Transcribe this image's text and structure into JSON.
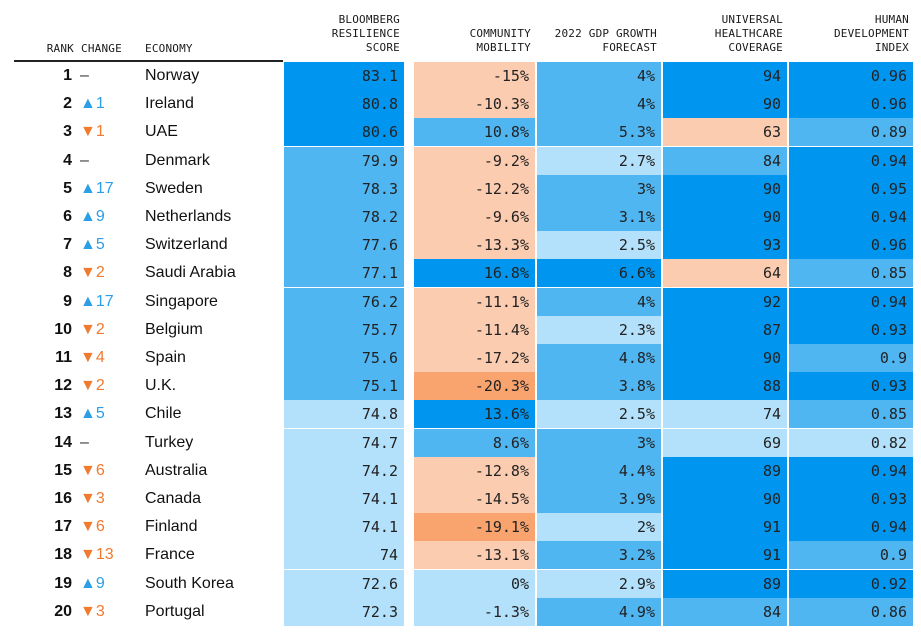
{
  "chart_data": {
    "type": "table",
    "headers": {
      "rank": "RANK",
      "change": "CHANGE",
      "economy": "ECONOMY",
      "score": "BLOOMBERG\nRESILIENCE\nSCORE",
      "mobility": "COMMUNITY\nMOBILITY",
      "gdp": "2022 GDP GROWTH\nFORECAST",
      "uhc": "UNIVERSAL\nHEALTHCARE\nCOVERAGE",
      "hdi": "HUMAN\nDEVELOPMENT\nINDEX"
    },
    "rows": [
      {
        "rank": "1",
        "change": "–",
        "dir": "flat",
        "economy": "Norway",
        "score": "83.1",
        "mobility": "-15%",
        "gdp": "4%",
        "uhc": "94",
        "hdi": "0.96"
      },
      {
        "rank": "2",
        "change": "▲1",
        "dir": "up",
        "economy": "Ireland",
        "score": "80.8",
        "mobility": "-10.3%",
        "gdp": "4%",
        "uhc": "90",
        "hdi": "0.96"
      },
      {
        "rank": "3",
        "change": "▼1",
        "dir": "down",
        "economy": "UAE",
        "score": "80.6",
        "mobility": "10.8%",
        "gdp": "5.3%",
        "uhc": "63",
        "hdi": "0.89"
      },
      {
        "rank": "4",
        "change": "–",
        "dir": "flat",
        "economy": "Denmark",
        "score": "79.9",
        "mobility": "-9.2%",
        "gdp": "2.7%",
        "uhc": "84",
        "hdi": "0.94"
      },
      {
        "rank": "5",
        "change": "▲17",
        "dir": "up",
        "economy": "Sweden",
        "score": "78.3",
        "mobility": "-12.2%",
        "gdp": "3%",
        "uhc": "90",
        "hdi": "0.95"
      },
      {
        "rank": "6",
        "change": "▲9",
        "dir": "up",
        "economy": "Netherlands",
        "score": "78.2",
        "mobility": "-9.6%",
        "gdp": "3.1%",
        "uhc": "90",
        "hdi": "0.94"
      },
      {
        "rank": "7",
        "change": "▲5",
        "dir": "up",
        "economy": "Switzerland",
        "score": "77.6",
        "mobility": "-13.3%",
        "gdp": "2.5%",
        "uhc": "93",
        "hdi": "0.96"
      },
      {
        "rank": "8",
        "change": "▼2",
        "dir": "down",
        "economy": "Saudi Arabia",
        "score": "77.1",
        "mobility": "16.8%",
        "gdp": "6.6%",
        "uhc": "64",
        "hdi": "0.85"
      },
      {
        "rank": "9",
        "change": "▲17",
        "dir": "up",
        "economy": "Singapore",
        "score": "76.2",
        "mobility": "-11.1%",
        "gdp": "4%",
        "uhc": "92",
        "hdi": "0.94"
      },
      {
        "rank": "10",
        "change": "▼2",
        "dir": "down",
        "economy": "Belgium",
        "score": "75.7",
        "mobility": "-11.4%",
        "gdp": "2.3%",
        "uhc": "87",
        "hdi": "0.93"
      },
      {
        "rank": "11",
        "change": "▼4",
        "dir": "down",
        "economy": "Spain",
        "score": "75.6",
        "mobility": "-17.2%",
        "gdp": "4.8%",
        "uhc": "90",
        "hdi": "0.9"
      },
      {
        "rank": "12",
        "change": "▼2",
        "dir": "down",
        "economy": "U.K.",
        "score": "75.1",
        "mobility": "-20.3%",
        "gdp": "3.8%",
        "uhc": "88",
        "hdi": "0.93"
      },
      {
        "rank": "13",
        "change": "▲5",
        "dir": "up",
        "economy": "Chile",
        "score": "74.8",
        "mobility": "13.6%",
        "gdp": "2.5%",
        "uhc": "74",
        "hdi": "0.85"
      },
      {
        "rank": "14",
        "change": "–",
        "dir": "flat",
        "economy": "Turkey",
        "score": "74.7",
        "mobility": "8.6%",
        "gdp": "3%",
        "uhc": "69",
        "hdi": "0.82"
      },
      {
        "rank": "15",
        "change": "▼6",
        "dir": "down",
        "economy": "Australia",
        "score": "74.2",
        "mobility": "-12.8%",
        "gdp": "4.4%",
        "uhc": "89",
        "hdi": "0.94"
      },
      {
        "rank": "16",
        "change": "▼3",
        "dir": "down",
        "economy": "Canada",
        "score": "74.1",
        "mobility": "-14.5%",
        "gdp": "3.9%",
        "uhc": "90",
        "hdi": "0.93"
      },
      {
        "rank": "17",
        "change": "▼6",
        "dir": "down",
        "economy": "Finland",
        "score": "74.1",
        "mobility": "-19.1%",
        "gdp": "2%",
        "uhc": "91",
        "hdi": "0.94"
      },
      {
        "rank": "18",
        "change": "▼13",
        "dir": "down",
        "economy": "France",
        "score": "74",
        "mobility": "-13.1%",
        "gdp": "3.2%",
        "uhc": "91",
        "hdi": "0.9"
      },
      {
        "rank": "19",
        "change": "▲9",
        "dir": "up",
        "economy": "South Korea",
        "score": "72.6",
        "mobility": "0%",
        "gdp": "2.9%",
        "uhc": "89",
        "hdi": "0.92"
      },
      {
        "rank": "20",
        "change": "▼3",
        "dir": "down",
        "economy": "Portugal",
        "score": "72.3",
        "mobility": "-1.3%",
        "gdp": "4.9%",
        "uhc": "84",
        "hdi": "0.86"
      }
    ],
    "cell_colors": {
      "score": [
        "#0096f0",
        "#0096f0",
        "#0096f0",
        "#4fb6f2",
        "#4fb6f2",
        "#4fb6f2",
        "#4fb6f2",
        "#4fb6f2",
        "#4fb6f2",
        "#4fb6f2",
        "#4fb6f2",
        "#4fb6f2",
        "#b3e0fa",
        "#b3e0fa",
        "#b3e0fa",
        "#b3e0fa",
        "#b3e0fa",
        "#b3e0fa",
        "#b3e0fa",
        "#b3e0fa"
      ],
      "mobility": [
        "#fcccb0",
        "#fcccb0",
        "#4fb6f2",
        "#fcccb0",
        "#fcccb0",
        "#fcccb0",
        "#fcccb0",
        "#0096f0",
        "#fcccb0",
        "#fcccb0",
        "#fcccb0",
        "#f9a46e",
        "#0096f0",
        "#4fb6f2",
        "#fcccb0",
        "#fcccb0",
        "#f9a46e",
        "#fcccb0",
        "#b3e0fa",
        "#b3e0fa"
      ],
      "gdp": [
        "#4fb6f2",
        "#4fb6f2",
        "#4fb6f2",
        "#b3e0fa",
        "#4fb6f2",
        "#4fb6f2",
        "#b3e0fa",
        "#0096f0",
        "#4fb6f2",
        "#b3e0fa",
        "#4fb6f2",
        "#4fb6f2",
        "#b3e0fa",
        "#4fb6f2",
        "#4fb6f2",
        "#4fb6f2",
        "#b3e0fa",
        "#4fb6f2",
        "#b3e0fa",
        "#4fb6f2"
      ],
      "uhc": [
        "#0096f0",
        "#0096f0",
        "#fcccb0",
        "#4fb6f2",
        "#0096f0",
        "#0096f0",
        "#0096f0",
        "#fcccb0",
        "#0096f0",
        "#0096f0",
        "#0096f0",
        "#0096f0",
        "#b3e0fa",
        "#b3e0fa",
        "#0096f0",
        "#0096f0",
        "#0096f0",
        "#0096f0",
        "#0096f0",
        "#4fb6f2"
      ],
      "hdi": [
        "#0096f0",
        "#0096f0",
        "#4fb6f2",
        "#0096f0",
        "#0096f0",
        "#0096f0",
        "#0096f0",
        "#4fb6f2",
        "#0096f0",
        "#0096f0",
        "#4fb6f2",
        "#0096f0",
        "#4fb6f2",
        "#b3e0fa",
        "#0096f0",
        "#0096f0",
        "#0096f0",
        "#4fb6f2",
        "#0096f0",
        "#4fb6f2"
      ]
    }
  }
}
